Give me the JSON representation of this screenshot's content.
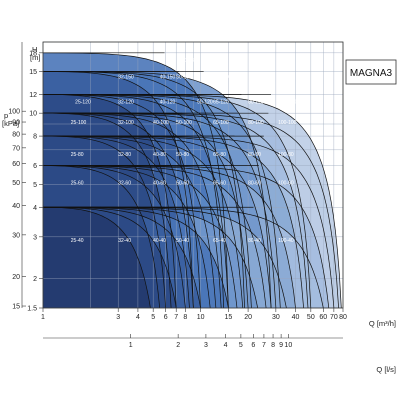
{
  "chart_data": {
    "type": "area",
    "title": "MAGNA3",
    "xlabel": "Q [m³/h]",
    "x2label": "Q [l/s]",
    "ylabel_left": "p [kPa]",
    "ylabel_right": "H [m]",
    "x_scale": "log",
    "y_scale": "log",
    "xlim": [
      1,
      80
    ],
    "ylim": [
      1.5,
      20
    ],
    "grid": true,
    "x_ticks": [
      1,
      3,
      4,
      5,
      6,
      7,
      8,
      10,
      15,
      20,
      30,
      40,
      50,
      60,
      70,
      80
    ],
    "x_tick_labels": [
      "1",
      "3",
      "4",
      "5",
      "6",
      "7",
      "8",
      "10",
      "15",
      "20",
      "30",
      "40",
      "50",
      "60",
      "70",
      "80"
    ],
    "x2_ticks": [
      1,
      2,
      3,
      4,
      5,
      6,
      7,
      8,
      9,
      10
    ],
    "x2_tick_labels": [
      "1",
      "2",
      "3",
      "4",
      "5",
      "6",
      "7",
      "8",
      "9",
      "10"
    ],
    "h_ticks": [
      1.5,
      2,
      3,
      4,
      5,
      6,
      8,
      10,
      12,
      15,
      18
    ],
    "h_tick_labels": [
      "1.5",
      "2",
      "3",
      "4",
      "5",
      "6",
      "8",
      "10",
      "12",
      "15",
      "18"
    ],
    "p_ticks": [
      15,
      20,
      30,
      40,
      50,
      60,
      70,
      80,
      90,
      100
    ],
    "p_tick_labels": [
      "15",
      "20",
      "30",
      "40",
      "50",
      "60",
      "70",
      "80",
      "90",
      "100"
    ],
    "palette": [
      "#243a6e",
      "#2c4a86",
      "#3a5fa0",
      "#4a75b8",
      "#5c88c4",
      "#7197cc",
      "#8aaad4",
      "#a4bddf",
      "#bccde6"
    ],
    "series": [
      {
        "name": "25-40",
        "hmax": 4.0,
        "qmax": 4.8,
        "label_q": 1.5,
        "label_h": 2.85
      },
      {
        "name": "32-40",
        "hmax": 4.0,
        "qmax": 7.0,
        "label_q": 3.0,
        "label_h": 2.85
      },
      {
        "name": "40-40",
        "hmax": 4.0,
        "qmax": 10.0,
        "label_q": 5.0,
        "label_h": 2.85
      },
      {
        "name": "50-40",
        "hmax": 4.0,
        "qmax": 15.0,
        "label_q": 7.0,
        "label_h": 2.85
      },
      {
        "name": "65-40",
        "hmax": 4.0,
        "qmax": 23.0,
        "label_q": 12.0,
        "label_h": 2.85
      },
      {
        "name": "80-40",
        "hmax": 4.0,
        "qmax": 35.0,
        "label_q": 20.0,
        "label_h": 2.85
      },
      {
        "name": "100-40",
        "hmax": 4.0,
        "qmax": 60.0,
        "label_q": 31.0,
        "label_h": 2.85
      },
      {
        "name": "25-60",
        "hmax": 6.0,
        "qmax": 5.5,
        "label_q": 1.5,
        "label_h": 5.0
      },
      {
        "name": "32-60",
        "hmax": 6.0,
        "qmax": 8.0,
        "label_q": 3.0,
        "label_h": 5.0
      },
      {
        "name": "40-60",
        "hmax": 6.0,
        "qmax": 11.5,
        "label_q": 5.0,
        "label_h": 5.0
      },
      {
        "name": "50-60",
        "hmax": 6.0,
        "qmax": 17.0,
        "label_q": 7.0,
        "label_h": 5.0
      },
      {
        "name": "65-60",
        "hmax": 6.0,
        "qmax": 26.0,
        "label_q": 12.0,
        "label_h": 5.0
      },
      {
        "name": "80-60",
        "hmax": 6.0,
        "qmax": 40.0,
        "label_q": 20.0,
        "label_h": 5.0
      },
      {
        "name": "100-60",
        "hmax": 6.0,
        "qmax": 65.0,
        "label_q": 31.0,
        "label_h": 5.0
      },
      {
        "name": "25-80",
        "hmax": 8.0,
        "qmax": 6.0,
        "label_q": 1.5,
        "label_h": 6.6
      },
      {
        "name": "32-80",
        "hmax": 8.0,
        "qmax": 8.5,
        "label_q": 3.0,
        "label_h": 6.6
      },
      {
        "name": "40-80",
        "hmax": 8.0,
        "qmax": 12.5,
        "label_q": 5.0,
        "label_h": 6.6
      },
      {
        "name": "50-80",
        "hmax": 8.0,
        "qmax": 18.5,
        "label_q": 7.0,
        "label_h": 6.6
      },
      {
        "name": "65-80",
        "hmax": 8.0,
        "qmax": 28.0,
        "label_q": 12.0,
        "label_h": 6.6
      },
      {
        "name": "80-80",
        "hmax": 8.0,
        "qmax": 45.0,
        "label_q": 20.0,
        "label_h": 6.6
      },
      {
        "name": "100-80",
        "hmax": 8.0,
        "qmax": 70.0,
        "label_q": 31.0,
        "label_h": 6.6
      },
      {
        "name": "25-100",
        "hmax": 10.0,
        "qmax": 6.5,
        "label_q": 1.5,
        "label_h": 9.0
      },
      {
        "name": "32-100",
        "hmax": 10.0,
        "qmax": 9.0,
        "label_q": 3.0,
        "label_h": 9.0
      },
      {
        "name": "40-100",
        "hmax": 10.0,
        "qmax": 13.5,
        "label_q": 5.0,
        "label_h": 9.0
      },
      {
        "name": "50-100",
        "hmax": 10.0,
        "qmax": 20.0,
        "label_q": 7.0,
        "label_h": 9.0
      },
      {
        "name": "65-100",
        "hmax": 10.0,
        "qmax": 30.0,
        "label_q": 12.0,
        "label_h": 9.0
      },
      {
        "name": "80-100",
        "hmax": 10.0,
        "qmax": 48.0,
        "label_q": 20.0,
        "label_h": 9.0
      },
      {
        "name": "100-100",
        "hmax": 10.0,
        "qmax": 75.0,
        "label_q": 31.0,
        "label_h": 9.0
      },
      {
        "name": "25-120",
        "hmax": 12.0,
        "qmax": 7.0,
        "label_q": 1.6,
        "label_h": 11.0
      },
      {
        "name": "32-120",
        "hmax": 12.0,
        "qmax": 10.0,
        "label_q": 3.0,
        "label_h": 11.0
      },
      {
        "name": "40-120",
        "hmax": 12.0,
        "qmax": 15.0,
        "label_q": 5.5,
        "label_h": 11.0
      },
      {
        "name": "50-120",
        "hmax": 12.0,
        "qmax": 21.0,
        "label_q": 9.5,
        "label_h": 11.0
      },
      {
        "name": "65-120",
        "hmax": 12.0,
        "qmax": 32.0,
        "label_q": 12.0,
        "label_h": 11.0
      },
      {
        "name": "80-120",
        "hmax": 12.0,
        "qmax": 50.0,
        "label_q": 20.0,
        "label_h": 11.0
      },
      {
        "name": "100-120",
        "hmax": 12.0,
        "qmax": 78.0,
        "label_q": 31.0,
        "label_h": 11.0
      },
      {
        "name": "32-150",
        "hmax": 15.0,
        "qmax": 9.0,
        "label_q": 3.0,
        "label_h": 14.0
      },
      {
        "name": "40-150",
        "hmax": 15.0,
        "qmax": 14.0,
        "label_q": 5.5,
        "label_h": 14.0
      },
      {
        "name": "50-150",
        "hmax": 15.0,
        "qmax": 19.0,
        "label_q": 7.0,
        "label_h": 14.0
      },
      {
        "name": "65-150",
        "hmax": 15.0,
        "qmax": 28.0,
        "label_q": 12.0,
        "label_h": 14.0
      },
      {
        "name": "40-180",
        "hmax": 18.0,
        "qmax": 15.0,
        "label_q": 7.5,
        "label_h": 16.5
      }
    ]
  }
}
